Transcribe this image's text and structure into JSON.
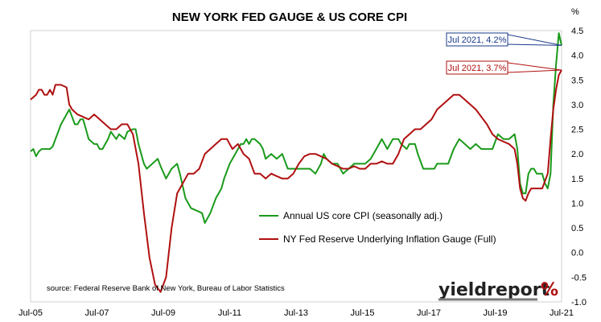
{
  "chart_data": {
    "type": "line",
    "title": "NEW YORK FED GAUGE & US CORE CPI",
    "ylabel": "%",
    "ylim": [
      -1.0,
      4.5
    ],
    "yticks": [
      "-1.0",
      "-0.5",
      "0.0",
      "0.5",
      "1.0",
      "1.5",
      "2.0",
      "2.5",
      "3.0",
      "3.5",
      "4.0",
      "4.5"
    ],
    "xticks": [
      "Jul-05",
      "Jul-07",
      "Jul-09",
      "Jul-11",
      "Jul-13",
      "Jul-15",
      "Jul-17",
      "Jul-19",
      "Jul-21"
    ],
    "x_start": "Jul-05",
    "x_end": "Jul-21",
    "grid": false,
    "legend_position": "bottom-center",
    "series": [
      {
        "name": "Annual US core CPI (seasonally adj.)",
        "color": "#1a9a1a",
        "points": [
          [
            "2005-07",
            2.05
          ],
          [
            "2005-08",
            2.1
          ],
          [
            "2005-09",
            1.95
          ],
          [
            "2005-10",
            2.05
          ],
          [
            "2005-11",
            2.1
          ],
          [
            "2005-12",
            2.1
          ],
          [
            "2006-02",
            2.1
          ],
          [
            "2006-03",
            2.15
          ],
          [
            "2006-04",
            2.3
          ],
          [
            "2006-05",
            2.45
          ],
          [
            "2006-06",
            2.6
          ],
          [
            "2006-07",
            2.7
          ],
          [
            "2006-09",
            2.9
          ],
          [
            "2006-10",
            2.75
          ],
          [
            "2006-11",
            2.6
          ],
          [
            "2006-12",
            2.6
          ],
          [
            "2007-01",
            2.7
          ],
          [
            "2007-02",
            2.7
          ],
          [
            "2007-03",
            2.5
          ],
          [
            "2007-04",
            2.3
          ],
          [
            "2007-05",
            2.25
          ],
          [
            "2007-06",
            2.2
          ],
          [
            "2007-07",
            2.2
          ],
          [
            "2007-08",
            2.1
          ],
          [
            "2007-09",
            2.1
          ],
          [
            "2007-10",
            2.2
          ],
          [
            "2007-11",
            2.3
          ],
          [
            "2007-12",
            2.45
          ],
          [
            "2008-02",
            2.3
          ],
          [
            "2008-03",
            2.4
          ],
          [
            "2008-05",
            2.3
          ],
          [
            "2008-06",
            2.45
          ],
          [
            "2008-08",
            2.5
          ],
          [
            "2008-09",
            2.5
          ],
          [
            "2008-10",
            2.2
          ],
          [
            "2008-11",
            2.0
          ],
          [
            "2008-12",
            1.8
          ],
          [
            "2009-01",
            1.7
          ],
          [
            "2009-03",
            1.8
          ],
          [
            "2009-05",
            1.9
          ],
          [
            "2009-06",
            1.75
          ],
          [
            "2009-08",
            1.5
          ],
          [
            "2009-10",
            1.7
          ],
          [
            "2009-12",
            1.8
          ],
          [
            "2010-01",
            1.6
          ],
          [
            "2010-03",
            1.1
          ],
          [
            "2010-05",
            0.9
          ],
          [
            "2010-07",
            0.85
          ],
          [
            "2010-09",
            0.8
          ],
          [
            "2010-10",
            0.6
          ],
          [
            "2010-12",
            0.8
          ],
          [
            "2011-02",
            1.1
          ],
          [
            "2011-04",
            1.3
          ],
          [
            "2011-05",
            1.5
          ],
          [
            "2011-07",
            1.8
          ],
          [
            "2011-09",
            2.0
          ],
          [
            "2011-10",
            2.1
          ],
          [
            "2011-11",
            2.2
          ],
          [
            "2011-12",
            2.2
          ],
          [
            "2012-01",
            2.3
          ],
          [
            "2012-02",
            2.2
          ],
          [
            "2012-03",
            2.3
          ],
          [
            "2012-04",
            2.3
          ],
          [
            "2012-05",
            2.25
          ],
          [
            "2012-06",
            2.2
          ],
          [
            "2012-07",
            2.1
          ],
          [
            "2012-08",
            1.9
          ],
          [
            "2012-10",
            2.0
          ],
          [
            "2012-12",
            1.9
          ],
          [
            "2013-02",
            2.0
          ],
          [
            "2013-04",
            1.7
          ],
          [
            "2013-05",
            1.7
          ],
          [
            "2013-07",
            1.7
          ],
          [
            "2013-09",
            1.7
          ],
          [
            "2013-10",
            1.7
          ],
          [
            "2013-12",
            1.7
          ],
          [
            "2014-02",
            1.6
          ],
          [
            "2014-04",
            1.8
          ],
          [
            "2014-05",
            2.0
          ],
          [
            "2014-06",
            1.9
          ],
          [
            "2014-08",
            1.8
          ],
          [
            "2014-10",
            1.8
          ],
          [
            "2014-12",
            1.6
          ],
          [
            "2015-02",
            1.7
          ],
          [
            "2015-04",
            1.8
          ],
          [
            "2015-06",
            1.8
          ],
          [
            "2015-08",
            1.8
          ],
          [
            "2015-10",
            1.9
          ],
          [
            "2015-12",
            2.1
          ],
          [
            "2016-02",
            2.3
          ],
          [
            "2016-04",
            2.1
          ],
          [
            "2016-06",
            2.3
          ],
          [
            "2016-08",
            2.3
          ],
          [
            "2016-09",
            2.2
          ],
          [
            "2016-11",
            2.1
          ],
          [
            "2016-12",
            2.2
          ],
          [
            "2017-02",
            2.2
          ],
          [
            "2017-03",
            2.0
          ],
          [
            "2017-05",
            1.7
          ],
          [
            "2017-07",
            1.7
          ],
          [
            "2017-09",
            1.7
          ],
          [
            "2017-10",
            1.8
          ],
          [
            "2017-12",
            1.8
          ],
          [
            "2018-02",
            1.8
          ],
          [
            "2018-04",
            2.1
          ],
          [
            "2018-06",
            2.3
          ],
          [
            "2018-08",
            2.2
          ],
          [
            "2018-10",
            2.1
          ],
          [
            "2018-12",
            2.2
          ],
          [
            "2019-02",
            2.1
          ],
          [
            "2019-04",
            2.1
          ],
          [
            "2019-06",
            2.1
          ],
          [
            "2019-08",
            2.4
          ],
          [
            "2019-10",
            2.3
          ],
          [
            "2019-12",
            2.3
          ],
          [
            "2020-02",
            2.4
          ],
          [
            "2020-03",
            2.1
          ],
          [
            "2020-04",
            1.4
          ],
          [
            "2020-05",
            1.2
          ],
          [
            "2020-06",
            1.2
          ],
          [
            "2020-07",
            1.6
          ],
          [
            "2020-08",
            1.7
          ],
          [
            "2020-09",
            1.7
          ],
          [
            "2020-10",
            1.6
          ],
          [
            "2020-11",
            1.6
          ],
          [
            "2020-12",
            1.6
          ],
          [
            "2021-01",
            1.4
          ],
          [
            "2021-02",
            1.3
          ],
          [
            "2021-03",
            1.6
          ],
          [
            "2021-04",
            3.0
          ],
          [
            "2021-05",
            3.8
          ],
          [
            "2021-06",
            4.45
          ],
          [
            "2021-07",
            4.2
          ]
        ]
      },
      {
        "name": "NY Fed Reserve Underlying Inflation Gauge (Full)",
        "color": "#b01010",
        "points": [
          [
            "2005-07",
            3.1
          ],
          [
            "2005-09",
            3.2
          ],
          [
            "2005-10",
            3.3
          ],
          [
            "2005-11",
            3.3
          ],
          [
            "2005-12",
            3.2
          ],
          [
            "2006-01",
            3.2
          ],
          [
            "2006-02",
            3.3
          ],
          [
            "2006-03",
            3.2
          ],
          [
            "2006-04",
            3.4
          ],
          [
            "2006-06",
            3.4
          ],
          [
            "2006-08",
            3.35
          ],
          [
            "2006-09",
            3.0
          ],
          [
            "2006-10",
            2.9
          ],
          [
            "2006-12",
            2.8
          ],
          [
            "2007-02",
            2.75
          ],
          [
            "2007-04",
            2.7
          ],
          [
            "2007-06",
            2.8
          ],
          [
            "2007-08",
            2.7
          ],
          [
            "2007-10",
            2.6
          ],
          [
            "2007-12",
            2.5
          ],
          [
            "2008-02",
            2.5
          ],
          [
            "2008-04",
            2.6
          ],
          [
            "2008-06",
            2.6
          ],
          [
            "2008-08",
            2.4
          ],
          [
            "2008-10",
            1.8
          ],
          [
            "2008-12",
            0.8
          ],
          [
            "2009-02",
            -0.1
          ],
          [
            "2009-04",
            -0.65
          ],
          [
            "2009-06",
            -0.8
          ],
          [
            "2009-08",
            -0.5
          ],
          [
            "2009-10",
            0.5
          ],
          [
            "2009-12",
            1.2
          ],
          [
            "2010-02",
            1.4
          ],
          [
            "2010-04",
            1.6
          ],
          [
            "2010-06",
            1.6
          ],
          [
            "2010-08",
            1.7
          ],
          [
            "2010-10",
            2.0
          ],
          [
            "2010-12",
            2.1
          ],
          [
            "2011-02",
            2.2
          ],
          [
            "2011-04",
            2.3
          ],
          [
            "2011-06",
            2.3
          ],
          [
            "2011-08",
            2.1
          ],
          [
            "2011-10",
            2.2
          ],
          [
            "2011-12",
            2.0
          ],
          [
            "2012-02",
            1.9
          ],
          [
            "2012-04",
            1.6
          ],
          [
            "2012-06",
            1.6
          ],
          [
            "2012-08",
            1.5
          ],
          [
            "2012-10",
            1.6
          ],
          [
            "2012-12",
            1.55
          ],
          [
            "2013-02",
            1.5
          ],
          [
            "2013-04",
            1.5
          ],
          [
            "2013-06",
            1.6
          ],
          [
            "2013-08",
            1.8
          ],
          [
            "2013-10",
            1.95
          ],
          [
            "2013-12",
            2.0
          ],
          [
            "2014-02",
            2.0
          ],
          [
            "2014-04",
            1.95
          ],
          [
            "2014-06",
            1.9
          ],
          [
            "2014-08",
            1.8
          ],
          [
            "2014-10",
            1.75
          ],
          [
            "2014-12",
            1.7
          ],
          [
            "2015-02",
            1.7
          ],
          [
            "2015-04",
            1.75
          ],
          [
            "2015-06",
            1.7
          ],
          [
            "2015-08",
            1.7
          ],
          [
            "2015-10",
            1.8
          ],
          [
            "2015-12",
            1.8
          ],
          [
            "2016-02",
            1.85
          ],
          [
            "2016-04",
            1.8
          ],
          [
            "2016-06",
            1.8
          ],
          [
            "2016-08",
            2.0
          ],
          [
            "2016-10",
            2.3
          ],
          [
            "2016-12",
            2.4
          ],
          [
            "2017-02",
            2.5
          ],
          [
            "2017-04",
            2.5
          ],
          [
            "2017-06",
            2.6
          ],
          [
            "2017-08",
            2.7
          ],
          [
            "2017-10",
            2.9
          ],
          [
            "2017-12",
            3.0
          ],
          [
            "2018-02",
            3.1
          ],
          [
            "2018-04",
            3.2
          ],
          [
            "2018-06",
            3.2
          ],
          [
            "2018-08",
            3.1
          ],
          [
            "2018-10",
            3.0
          ],
          [
            "2018-12",
            2.9
          ],
          [
            "2019-02",
            2.75
          ],
          [
            "2019-04",
            2.6
          ],
          [
            "2019-06",
            2.4
          ],
          [
            "2019-08",
            2.3
          ],
          [
            "2019-10",
            2.25
          ],
          [
            "2019-12",
            2.2
          ],
          [
            "2020-02",
            2.1
          ],
          [
            "2020-03",
            1.8
          ],
          [
            "2020-04",
            1.3
          ],
          [
            "2020-05",
            1.1
          ],
          [
            "2020-06",
            1.05
          ],
          [
            "2020-07",
            1.2
          ],
          [
            "2020-08",
            1.3
          ],
          [
            "2020-10",
            1.3
          ],
          [
            "2020-12",
            1.3
          ],
          [
            "2021-01",
            1.45
          ],
          [
            "2021-02",
            1.6
          ],
          [
            "2021-03",
            2.3
          ],
          [
            "2021-04",
            2.9
          ],
          [
            "2021-05",
            3.3
          ],
          [
            "2021-06",
            3.6
          ],
          [
            "2021-07",
            3.7
          ]
        ]
      }
    ],
    "annotations": [
      {
        "text": "Jul 2021, 4.2%",
        "color": "#1a3a8a",
        "x": "2021-07",
        "y": 4.2
      },
      {
        "text": "Jul 2021, 3.7%",
        "color": "#b01010",
        "x": "2021-07",
        "y": 3.7
      }
    ],
    "source": "source: Federal Reserve Bank of New York, Bureau of Labor Statistics",
    "brand": "yieldreport",
    "brand_symbol": "%"
  }
}
